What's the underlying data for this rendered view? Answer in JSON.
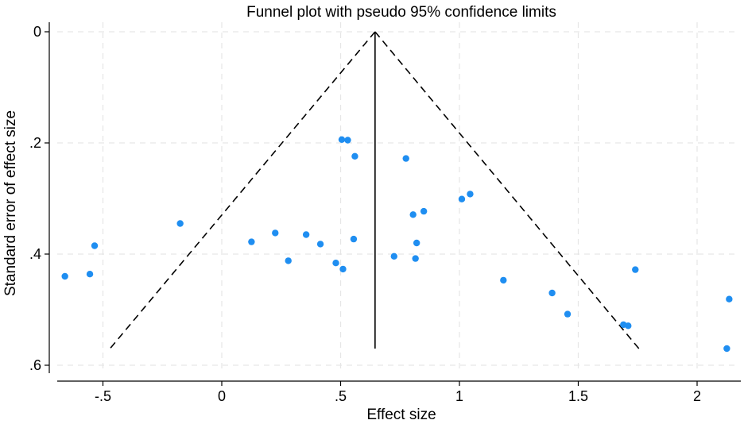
{
  "chart_data": {
    "type": "scatter",
    "title": "Funnel plot with pseudo 95% confidence limits",
    "xlabel": "Effect size",
    "ylabel": "Standard error of effect size",
    "x_ticks": [
      -0.5,
      0,
      0.5,
      1,
      1.5,
      2
    ],
    "x_tick_labels": [
      "-.5",
      "0",
      ".5",
      "1",
      "1.5",
      "2"
    ],
    "y_ticks": [
      0,
      0.2,
      0.4,
      0.6
    ],
    "y_tick_labels": [
      "0",
      ".2",
      ".4",
      ".6"
    ],
    "xlim": [
      -0.69,
      2.16
    ],
    "ylim": [
      0.6,
      0
    ],
    "y_axis_reversed": true,
    "grid": true,
    "pooled_effect": 0.645,
    "max_se": 0.57,
    "funnel_line_bottom_left": -0.47,
    "funnel_line_bottom_right": 1.755,
    "point_color": "#1f8ef1",
    "points": [
      {
        "x": -0.66,
        "y": 0.44
      },
      {
        "x": -0.555,
        "y": 0.436
      },
      {
        "x": -0.535,
        "y": 0.385
      },
      {
        "x": -0.175,
        "y": 0.345
      },
      {
        "x": 0.125,
        "y": 0.378
      },
      {
        "x": 0.225,
        "y": 0.362
      },
      {
        "x": 0.28,
        "y": 0.412
      },
      {
        "x": 0.355,
        "y": 0.365
      },
      {
        "x": 0.415,
        "y": 0.382
      },
      {
        "x": 0.48,
        "y": 0.416
      },
      {
        "x": 0.505,
        "y": 0.194
      },
      {
        "x": 0.51,
        "y": 0.427
      },
      {
        "x": 0.53,
        "y": 0.195
      },
      {
        "x": 0.555,
        "y": 0.373
      },
      {
        "x": 0.56,
        "y": 0.224
      },
      {
        "x": 0.725,
        "y": 0.404
      },
      {
        "x": 0.775,
        "y": 0.228
      },
      {
        "x": 0.805,
        "y": 0.329
      },
      {
        "x": 0.815,
        "y": 0.408
      },
      {
        "x": 0.82,
        "y": 0.38
      },
      {
        "x": 0.85,
        "y": 0.323
      },
      {
        "x": 1.01,
        "y": 0.301
      },
      {
        "x": 1.045,
        "y": 0.292
      },
      {
        "x": 1.185,
        "y": 0.447
      },
      {
        "x": 1.39,
        "y": 0.47
      },
      {
        "x": 1.455,
        "y": 0.508
      },
      {
        "x": 1.69,
        "y": 0.527
      },
      {
        "x": 1.71,
        "y": 0.529
      },
      {
        "x": 1.74,
        "y": 0.428
      },
      {
        "x": 2.125,
        "y": 0.57
      },
      {
        "x": 2.135,
        "y": 0.481
      }
    ]
  }
}
